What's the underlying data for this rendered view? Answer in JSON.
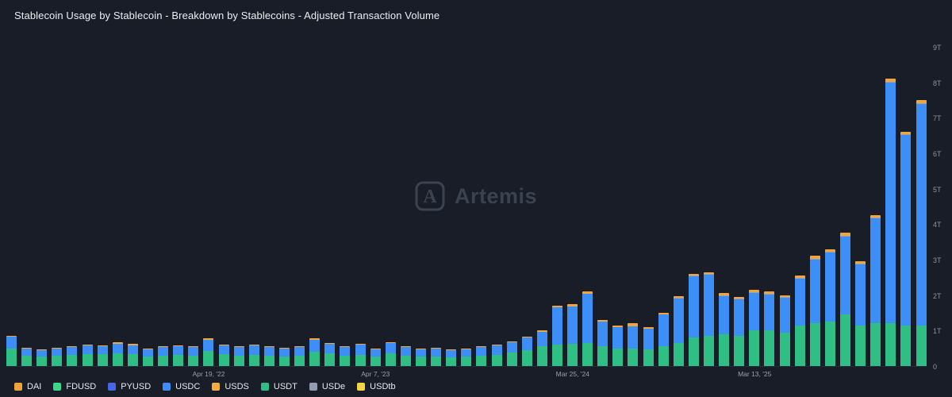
{
  "header": {
    "title": "Stablecoin Usage by Stablecoin - Breakdown by Stablecoins - Adjusted Transaction Volume"
  },
  "watermark": {
    "text": "Artemis",
    "logo_letter": "A"
  },
  "legend": {
    "items": [
      {
        "label": "DAI",
        "color": "#f0a23c"
      },
      {
        "label": "FDUSD",
        "color": "#3dd68c"
      },
      {
        "label": "PYUSD",
        "color": "#4666e5"
      },
      {
        "label": "USDC",
        "color": "#3e8ef7"
      },
      {
        "label": "USDS",
        "color": "#f5ae3d"
      },
      {
        "label": "USDT",
        "color": "#2fbf85"
      },
      {
        "label": "USDe",
        "color": "#939bb0"
      },
      {
        "label": "USDtb",
        "color": "#f7d447"
      }
    ]
  },
  "chart_data": {
    "type": "bar",
    "stacked": true,
    "title": "Stablecoin Usage by Stablecoin - Breakdown by Stablecoins - Adjusted Transaction Volume",
    "unit": "trillions USD",
    "ylim": [
      0,
      9
    ],
    "yticks": [
      "0",
      "1T",
      "2T",
      "3T",
      "4T",
      "5T",
      "6T",
      "7T",
      "8T",
      "9T"
    ],
    "xticks": [
      {
        "label": "Apr 19, '22",
        "index": 13
      },
      {
        "label": "Apr 7, '23",
        "index": 24
      },
      {
        "label": "Mar 25, '24",
        "index": 37
      },
      {
        "label": "Mar 13, '25",
        "index": 49
      }
    ],
    "series_order": [
      "USDT",
      "USDC",
      "USDe",
      "USDS"
    ],
    "colors": {
      "USDT": "#2fbf85",
      "USDC": "#3e8ef7",
      "USDe": "#9aa2b6",
      "USDS": "#f0a63c"
    },
    "legend_position": "bottom",
    "grid": false,
    "values": [
      [
        0.5,
        0.33,
        0,
        0.02
      ],
      [
        0.3,
        0.2,
        0,
        0.02
      ],
      [
        0.27,
        0.17,
        0,
        0.01
      ],
      [
        0.3,
        0.19,
        0,
        0.01
      ],
      [
        0.32,
        0.21,
        0,
        0.02
      ],
      [
        0.34,
        0.24,
        0,
        0.03
      ],
      [
        0.33,
        0.23,
        0,
        0.03
      ],
      [
        0.36,
        0.26,
        0,
        0.06
      ],
      [
        0.34,
        0.25,
        0,
        0.03
      ],
      [
        0.28,
        0.2,
        0,
        0.02
      ],
      [
        0.3,
        0.23,
        0,
        0.02
      ],
      [
        0.32,
        0.24,
        0,
        0.02
      ],
      [
        0.3,
        0.23,
        0,
        0.02
      ],
      [
        0.42,
        0.33,
        0,
        0.03
      ],
      [
        0.33,
        0.25,
        0,
        0.02
      ],
      [
        0.3,
        0.23,
        0,
        0.02
      ],
      [
        0.32,
        0.26,
        0,
        0.02
      ],
      [
        0.3,
        0.24,
        0,
        0.02
      ],
      [
        0.28,
        0.22,
        0,
        0.02
      ],
      [
        0.3,
        0.23,
        0,
        0.02
      ],
      [
        0.4,
        0.35,
        0,
        0.03
      ],
      [
        0.35,
        0.28,
        0,
        0.02
      ],
      [
        0.3,
        0.23,
        0,
        0.02
      ],
      [
        0.32,
        0.28,
        0,
        0.02
      ],
      [
        0.27,
        0.21,
        0,
        0.02
      ],
      [
        0.36,
        0.3,
        0,
        0.02
      ],
      [
        0.3,
        0.23,
        0,
        0.02
      ],
      [
        0.28,
        0.2,
        0,
        0.02
      ],
      [
        0.28,
        0.22,
        0,
        0.02
      ],
      [
        0.25,
        0.19,
        0,
        0.02
      ],
      [
        0.27,
        0.21,
        0,
        0.02
      ],
      [
        0.3,
        0.23,
        0,
        0.02
      ],
      [
        0.32,
        0.26,
        0,
        0.02
      ],
      [
        0.38,
        0.3,
        0,
        0.02
      ],
      [
        0.45,
        0.35,
        0,
        0.02
      ],
      [
        0.55,
        0.42,
        0,
        0.03
      ],
      [
        0.6,
        1.05,
        0,
        0.05
      ],
      [
        0.62,
        1.05,
        0,
        0.08
      ],
      [
        0.65,
        1.38,
        0,
        0.07
      ],
      [
        0.55,
        0.7,
        0,
        0.05
      ],
      [
        0.5,
        0.6,
        0,
        0.05
      ],
      [
        0.5,
        0.62,
        0,
        0.1
      ],
      [
        0.48,
        0.57,
        0,
        0.05
      ],
      [
        0.55,
        0.9,
        0,
        0.05
      ],
      [
        0.65,
        1.25,
        0.02,
        0.05
      ],
      [
        0.8,
        1.73,
        0.02,
        0.05
      ],
      [
        0.85,
        1.73,
        0.02,
        0.05
      ],
      [
        0.9,
        1.08,
        0.02,
        0.05
      ],
      [
        0.85,
        1.03,
        0.02,
        0.05
      ],
      [
        1.0,
        1.06,
        0.02,
        0.07
      ],
      [
        1.0,
        1.01,
        0.02,
        0.07
      ],
      [
        0.95,
        0.98,
        0.02,
        0.05
      ],
      [
        1.15,
        1.31,
        0.02,
        0.07
      ],
      [
        1.2,
        1.81,
        0.02,
        0.07
      ],
      [
        1.25,
        1.96,
        0.02,
        0.07
      ],
      [
        1.45,
        2.21,
        0.02,
        0.07
      ],
      [
        1.15,
        1.71,
        0.02,
        0.07
      ],
      [
        1.2,
        2.96,
        0.02,
        0.07
      ],
      [
        1.2,
        6.8,
        0.02,
        0.08
      ],
      [
        1.15,
        5.36,
        0.02,
        0.07
      ],
      [
        1.15,
        6.23,
        0.02,
        0.1
      ]
    ]
  }
}
